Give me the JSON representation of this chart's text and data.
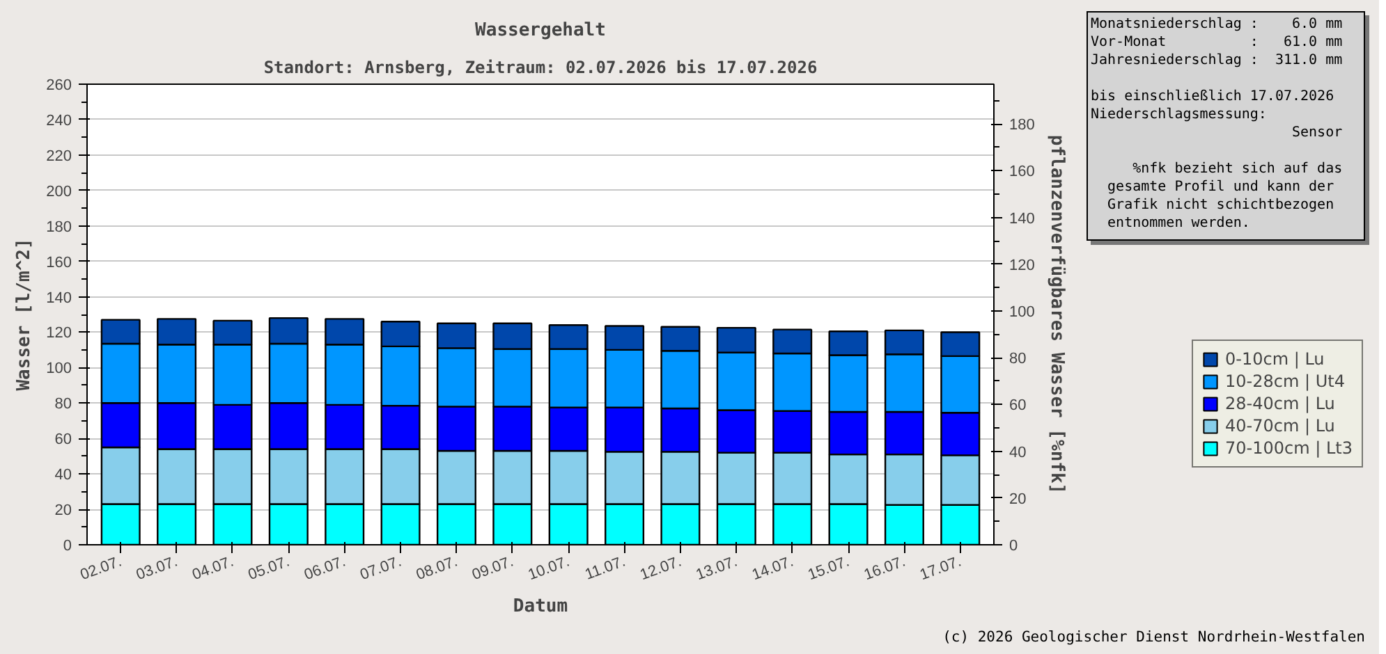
{
  "chart_data": {
    "type": "bar",
    "stacked": true,
    "title": "Wassergehalt",
    "subtitle": "Standort: Arnsberg, Zeitraum: 02.07.2026 bis 17.07.2026",
    "xlabel": "Datum",
    "ylabel": "Wasser [l/m^2]",
    "y2label": "pflanzenverfügbares Wasser [%nfk]",
    "categories": [
      "02.07.",
      "03.07.",
      "04.07.",
      "05.07.",
      "06.07.",
      "07.07.",
      "08.07.",
      "09.07.",
      "10.07.",
      "11.07.",
      "12.07.",
      "13.07.",
      "14.07.",
      "15.07.",
      "16.07.",
      "17.07."
    ],
    "series": [
      {
        "name": "70-100cm | Lt3",
        "color": "#00ffff",
        "values": [
          23,
          23,
          23,
          23,
          23,
          23,
          23,
          23,
          23,
          23,
          23,
          23,
          23,
          23,
          22.5,
          22.5
        ]
      },
      {
        "name": "40-70cm | Lu",
        "color": "#87ceeb",
        "values": [
          32,
          31,
          31,
          31,
          31,
          31,
          30,
          30,
          30,
          29.5,
          29.5,
          29,
          29,
          28,
          28.5,
          28
        ]
      },
      {
        "name": "28-40cm | Lu",
        "color": "#0000ff",
        "values": [
          25,
          26,
          25,
          26,
          25,
          24.5,
          25,
          25,
          24.5,
          25,
          24.5,
          24,
          23.5,
          24,
          24,
          24
        ]
      },
      {
        "name": "10-28cm | Ut4",
        "color": "#0096ff",
        "values": [
          33.5,
          33,
          34,
          33.5,
          34,
          33.5,
          33,
          32.5,
          33,
          32.5,
          32.5,
          32.5,
          32.5,
          32,
          32.5,
          32
        ]
      },
      {
        "name": "0-10cm | Lu",
        "color": "#0047ab",
        "values": [
          13.5,
          14.5,
          13.5,
          14.5,
          14.5,
          14,
          14,
          14.5,
          13.5,
          13.5,
          13.5,
          14,
          13.5,
          13.5,
          13.5,
          13.5
        ]
      }
    ],
    "ylim": [
      0,
      260
    ],
    "yticks": [
      0,
      20,
      40,
      60,
      80,
      100,
      120,
      140,
      160,
      180,
      200,
      220,
      240,
      260
    ],
    "y2lim": [
      0,
      197
    ],
    "y2ticks": [
      0,
      20,
      40,
      60,
      80,
      100,
      120,
      140,
      160,
      180
    ],
    "grid": "y",
    "legend": "bottom right",
    "annotations": [
      "Monatsniederschlag :    6.0 mm",
      "Vor-Monat          :   61.0 mm",
      "Jahresniederschlag :  311.0 mm",
      "bis einschließlich 17.07.2026",
      "Niederschlagsmessung: Sensor",
      "%nfk bezieht sich auf das gesamte Profil und kann der Grafik nicht schichtbezogen entnommen werden.",
      "(c) 2026 Geologischer Dienst Nordrhein-Westfalen"
    ]
  }
}
